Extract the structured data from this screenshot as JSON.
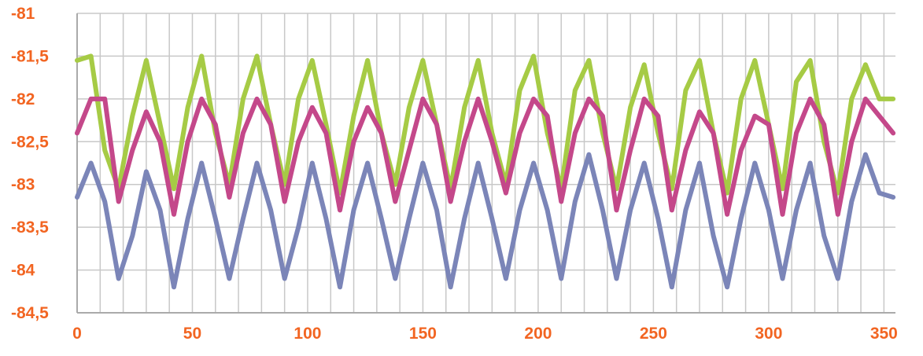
{
  "chart_data": {
    "type": "line",
    "title": "",
    "xlabel": "",
    "ylabel": "",
    "xlim": [
      0,
      355
    ],
    "ylim": [
      -84.5,
      -81
    ],
    "x_ticks": [
      0,
      50,
      100,
      150,
      200,
      250,
      300,
      350
    ],
    "x_tick_labels": [
      "0",
      "50",
      "100",
      "150",
      "200",
      "250",
      "300",
      "350"
    ],
    "y_ticks": [
      -81,
      -81.5,
      -82,
      -82.5,
      -83,
      -83.5,
      -84,
      -84.5
    ],
    "y_tick_labels": [
      "-81",
      "-81,5",
      "-82",
      "-82,5",
      "-83",
      "-83,5",
      "-84",
      "-84,5"
    ],
    "x_grid_step": 10,
    "grid": true,
    "legend": "none",
    "colors": {
      "tick_label": "#f26522",
      "grid": "#c8c8c8",
      "axis": "#aaaaaa"
    },
    "series": [
      {
        "color": "#a6cb45",
        "x": [
          0,
          6,
          12,
          18,
          24,
          30,
          36,
          42,
          48,
          54,
          60,
          66,
          72,
          78,
          84,
          90,
          96,
          102,
          108,
          114,
          120,
          126,
          132,
          138,
          144,
          150,
          156,
          162,
          168,
          174,
          180,
          186,
          192,
          198,
          204,
          210,
          216,
          222,
          228,
          234,
          240,
          246,
          252,
          258,
          264,
          270,
          276,
          282,
          288,
          294,
          300,
          306,
          312,
          318,
          324,
          330,
          336,
          342,
          348,
          354
        ],
        "values": [
          -81.55,
          -81.5,
          -82.6,
          -83.05,
          -82.2,
          -81.55,
          -82.3,
          -83.05,
          -82.1,
          -81.5,
          -82.4,
          -83.0,
          -82.0,
          -81.5,
          -82.3,
          -83.0,
          -82.0,
          -81.55,
          -82.3,
          -83.1,
          -82.2,
          -81.55,
          -82.4,
          -83.0,
          -82.1,
          -81.55,
          -82.3,
          -83.05,
          -82.1,
          -81.55,
          -82.4,
          -83.0,
          -81.9,
          -81.5,
          -82.4,
          -83.05,
          -81.9,
          -81.55,
          -82.4,
          -83.05,
          -82.1,
          -81.6,
          -82.4,
          -83.05,
          -81.9,
          -81.55,
          -82.4,
          -83.1,
          -82.0,
          -81.55,
          -82.3,
          -83.05,
          -81.8,
          -81.55,
          -82.5,
          -83.1,
          -82.0,
          -81.6,
          -82.0,
          -82.0
        ]
      },
      {
        "color": "#c4488a",
        "x": [
          0,
          6,
          12,
          18,
          24,
          30,
          36,
          42,
          48,
          54,
          60,
          66,
          72,
          78,
          84,
          90,
          96,
          102,
          108,
          114,
          120,
          126,
          132,
          138,
          144,
          150,
          156,
          162,
          168,
          174,
          180,
          186,
          192,
          198,
          204,
          210,
          216,
          222,
          228,
          234,
          240,
          246,
          252,
          258,
          264,
          270,
          276,
          282,
          288,
          294,
          300,
          306,
          312,
          318,
          324,
          330,
          336,
          342,
          348,
          354
        ],
        "values": [
          -82.4,
          -82.0,
          -82.0,
          -83.2,
          -82.6,
          -82.15,
          -82.5,
          -83.35,
          -82.5,
          -82.0,
          -82.3,
          -83.15,
          -82.4,
          -82.0,
          -82.3,
          -83.2,
          -82.5,
          -82.1,
          -82.4,
          -83.3,
          -82.5,
          -82.1,
          -82.4,
          -83.2,
          -82.6,
          -82.0,
          -82.3,
          -83.2,
          -82.5,
          -82.0,
          -82.5,
          -83.1,
          -82.4,
          -82.0,
          -82.2,
          -83.2,
          -82.4,
          -82.0,
          -82.2,
          -83.3,
          -82.6,
          -82.0,
          -82.2,
          -83.3,
          -82.6,
          -82.15,
          -82.4,
          -83.35,
          -82.6,
          -82.2,
          -82.3,
          -83.35,
          -82.4,
          -82.0,
          -82.3,
          -83.35,
          -82.5,
          -82.0,
          -82.2,
          -82.4
        ]
      },
      {
        "color": "#7b85b8",
        "x": [
          0,
          6,
          12,
          18,
          24,
          30,
          36,
          42,
          48,
          54,
          60,
          66,
          72,
          78,
          84,
          90,
          96,
          102,
          108,
          114,
          120,
          126,
          132,
          138,
          144,
          150,
          156,
          162,
          168,
          174,
          180,
          186,
          192,
          198,
          204,
          210,
          216,
          222,
          228,
          234,
          240,
          246,
          252,
          258,
          264,
          270,
          276,
          282,
          288,
          294,
          300,
          306,
          312,
          318,
          324,
          330,
          336,
          342,
          348,
          354
        ],
        "values": [
          -83.15,
          -82.75,
          -83.2,
          -84.1,
          -83.6,
          -82.85,
          -83.3,
          -84.2,
          -83.4,
          -82.75,
          -83.4,
          -84.1,
          -83.4,
          -82.75,
          -83.3,
          -84.1,
          -83.5,
          -82.75,
          -83.4,
          -84.2,
          -83.3,
          -82.75,
          -83.4,
          -84.1,
          -83.4,
          -82.75,
          -83.3,
          -84.2,
          -83.4,
          -82.75,
          -83.4,
          -84.1,
          -83.3,
          -82.75,
          -83.3,
          -84.1,
          -83.2,
          -82.65,
          -83.3,
          -84.1,
          -83.3,
          -82.75,
          -83.4,
          -84.2,
          -83.3,
          -82.75,
          -83.6,
          -84.2,
          -83.4,
          -82.75,
          -83.3,
          -84.1,
          -83.3,
          -82.75,
          -83.6,
          -84.1,
          -83.2,
          -82.65,
          -83.1,
          -83.15
        ]
      }
    ]
  }
}
